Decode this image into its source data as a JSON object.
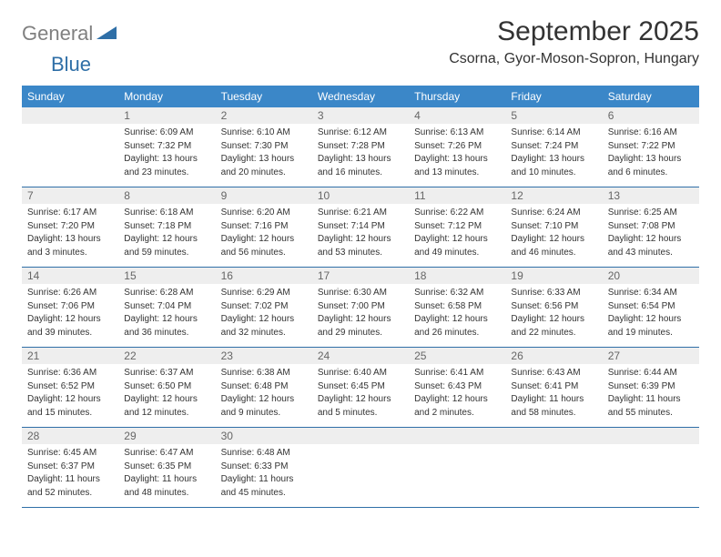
{
  "logo": {
    "gray": "General",
    "blue": "Blue"
  },
  "title": "September 2025",
  "location": "Csorna, Gyor-Moson-Sopron, Hungary",
  "colors": {
    "header_bg": "#3b87c8",
    "header_text": "#ffffff",
    "daynum_bg": "#eeeeee",
    "daynum_text": "#666666",
    "border": "#2f6fa7",
    "body_text": "#333333",
    "logo_gray": "#808080",
    "logo_blue": "#2f6fa7"
  },
  "weekdays": [
    "Sunday",
    "Monday",
    "Tuesday",
    "Wednesday",
    "Thursday",
    "Friday",
    "Saturday"
  ],
  "weeks": [
    [
      null,
      {
        "n": "1",
        "sr": "Sunrise: 6:09 AM",
        "ss": "Sunset: 7:32 PM",
        "dl1": "Daylight: 13 hours",
        "dl2": "and 23 minutes."
      },
      {
        "n": "2",
        "sr": "Sunrise: 6:10 AM",
        "ss": "Sunset: 7:30 PM",
        "dl1": "Daylight: 13 hours",
        "dl2": "and 20 minutes."
      },
      {
        "n": "3",
        "sr": "Sunrise: 6:12 AM",
        "ss": "Sunset: 7:28 PM",
        "dl1": "Daylight: 13 hours",
        "dl2": "and 16 minutes."
      },
      {
        "n": "4",
        "sr": "Sunrise: 6:13 AM",
        "ss": "Sunset: 7:26 PM",
        "dl1": "Daylight: 13 hours",
        "dl2": "and 13 minutes."
      },
      {
        "n": "5",
        "sr": "Sunrise: 6:14 AM",
        "ss": "Sunset: 7:24 PM",
        "dl1": "Daylight: 13 hours",
        "dl2": "and 10 minutes."
      },
      {
        "n": "6",
        "sr": "Sunrise: 6:16 AM",
        "ss": "Sunset: 7:22 PM",
        "dl1": "Daylight: 13 hours",
        "dl2": "and 6 minutes."
      }
    ],
    [
      {
        "n": "7",
        "sr": "Sunrise: 6:17 AM",
        "ss": "Sunset: 7:20 PM",
        "dl1": "Daylight: 13 hours",
        "dl2": "and 3 minutes."
      },
      {
        "n": "8",
        "sr": "Sunrise: 6:18 AM",
        "ss": "Sunset: 7:18 PM",
        "dl1": "Daylight: 12 hours",
        "dl2": "and 59 minutes."
      },
      {
        "n": "9",
        "sr": "Sunrise: 6:20 AM",
        "ss": "Sunset: 7:16 PM",
        "dl1": "Daylight: 12 hours",
        "dl2": "and 56 minutes."
      },
      {
        "n": "10",
        "sr": "Sunrise: 6:21 AM",
        "ss": "Sunset: 7:14 PM",
        "dl1": "Daylight: 12 hours",
        "dl2": "and 53 minutes."
      },
      {
        "n": "11",
        "sr": "Sunrise: 6:22 AM",
        "ss": "Sunset: 7:12 PM",
        "dl1": "Daylight: 12 hours",
        "dl2": "and 49 minutes."
      },
      {
        "n": "12",
        "sr": "Sunrise: 6:24 AM",
        "ss": "Sunset: 7:10 PM",
        "dl1": "Daylight: 12 hours",
        "dl2": "and 46 minutes."
      },
      {
        "n": "13",
        "sr": "Sunrise: 6:25 AM",
        "ss": "Sunset: 7:08 PM",
        "dl1": "Daylight: 12 hours",
        "dl2": "and 43 minutes."
      }
    ],
    [
      {
        "n": "14",
        "sr": "Sunrise: 6:26 AM",
        "ss": "Sunset: 7:06 PM",
        "dl1": "Daylight: 12 hours",
        "dl2": "and 39 minutes."
      },
      {
        "n": "15",
        "sr": "Sunrise: 6:28 AM",
        "ss": "Sunset: 7:04 PM",
        "dl1": "Daylight: 12 hours",
        "dl2": "and 36 minutes."
      },
      {
        "n": "16",
        "sr": "Sunrise: 6:29 AM",
        "ss": "Sunset: 7:02 PM",
        "dl1": "Daylight: 12 hours",
        "dl2": "and 32 minutes."
      },
      {
        "n": "17",
        "sr": "Sunrise: 6:30 AM",
        "ss": "Sunset: 7:00 PM",
        "dl1": "Daylight: 12 hours",
        "dl2": "and 29 minutes."
      },
      {
        "n": "18",
        "sr": "Sunrise: 6:32 AM",
        "ss": "Sunset: 6:58 PM",
        "dl1": "Daylight: 12 hours",
        "dl2": "and 26 minutes."
      },
      {
        "n": "19",
        "sr": "Sunrise: 6:33 AM",
        "ss": "Sunset: 6:56 PM",
        "dl1": "Daylight: 12 hours",
        "dl2": "and 22 minutes."
      },
      {
        "n": "20",
        "sr": "Sunrise: 6:34 AM",
        "ss": "Sunset: 6:54 PM",
        "dl1": "Daylight: 12 hours",
        "dl2": "and 19 minutes."
      }
    ],
    [
      {
        "n": "21",
        "sr": "Sunrise: 6:36 AM",
        "ss": "Sunset: 6:52 PM",
        "dl1": "Daylight: 12 hours",
        "dl2": "and 15 minutes."
      },
      {
        "n": "22",
        "sr": "Sunrise: 6:37 AM",
        "ss": "Sunset: 6:50 PM",
        "dl1": "Daylight: 12 hours",
        "dl2": "and 12 minutes."
      },
      {
        "n": "23",
        "sr": "Sunrise: 6:38 AM",
        "ss": "Sunset: 6:48 PM",
        "dl1": "Daylight: 12 hours",
        "dl2": "and 9 minutes."
      },
      {
        "n": "24",
        "sr": "Sunrise: 6:40 AM",
        "ss": "Sunset: 6:45 PM",
        "dl1": "Daylight: 12 hours",
        "dl2": "and 5 minutes."
      },
      {
        "n": "25",
        "sr": "Sunrise: 6:41 AM",
        "ss": "Sunset: 6:43 PM",
        "dl1": "Daylight: 12 hours",
        "dl2": "and 2 minutes."
      },
      {
        "n": "26",
        "sr": "Sunrise: 6:43 AM",
        "ss": "Sunset: 6:41 PM",
        "dl1": "Daylight: 11 hours",
        "dl2": "and 58 minutes."
      },
      {
        "n": "27",
        "sr": "Sunrise: 6:44 AM",
        "ss": "Sunset: 6:39 PM",
        "dl1": "Daylight: 11 hours",
        "dl2": "and 55 minutes."
      }
    ],
    [
      {
        "n": "28",
        "sr": "Sunrise: 6:45 AM",
        "ss": "Sunset: 6:37 PM",
        "dl1": "Daylight: 11 hours",
        "dl2": "and 52 minutes."
      },
      {
        "n": "29",
        "sr": "Sunrise: 6:47 AM",
        "ss": "Sunset: 6:35 PM",
        "dl1": "Daylight: 11 hours",
        "dl2": "and 48 minutes."
      },
      {
        "n": "30",
        "sr": "Sunrise: 6:48 AM",
        "ss": "Sunset: 6:33 PM",
        "dl1": "Daylight: 11 hours",
        "dl2": "and 45 minutes."
      },
      null,
      null,
      null,
      null
    ]
  ]
}
